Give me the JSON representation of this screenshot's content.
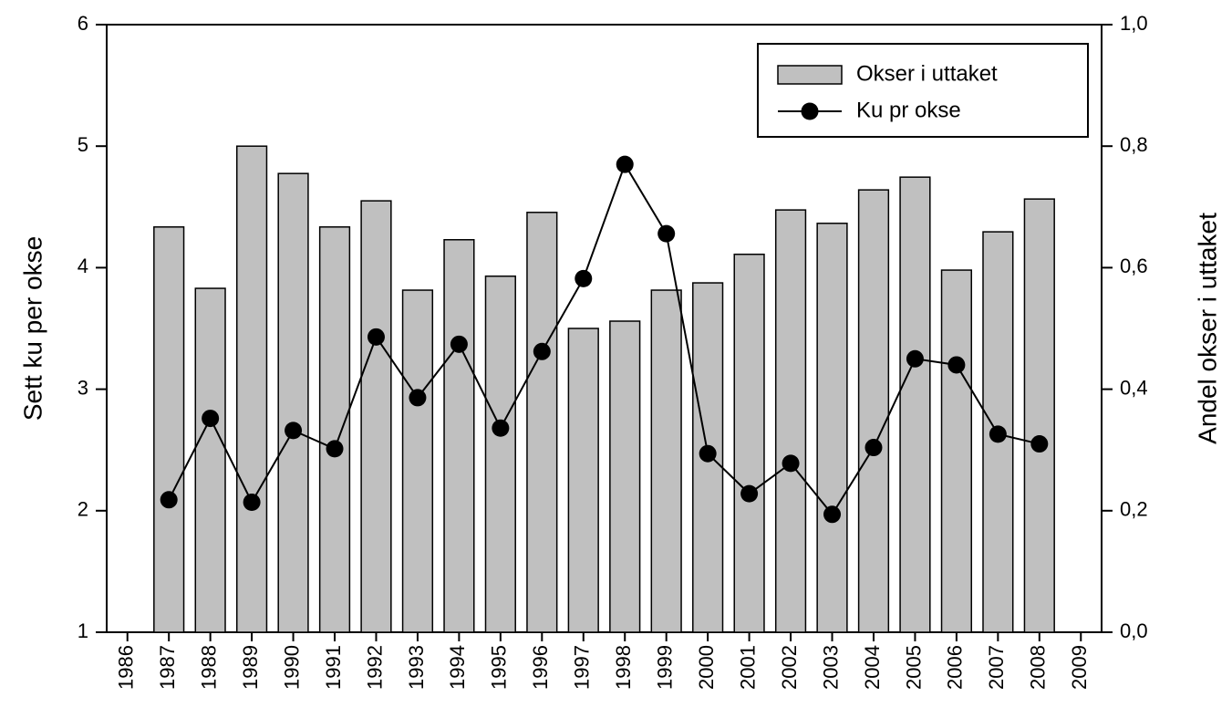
{
  "chart_data": {
    "type": "bar",
    "categories": [
      "1986",
      "1987",
      "1988",
      "1989",
      "1990",
      "1991",
      "1992",
      "1993",
      "1994",
      "1995",
      "1996",
      "1997",
      "1998",
      "1999",
      "2000",
      "2001",
      "2002",
      "2003",
      "2004",
      "2005",
      "2006",
      "2007",
      "2008",
      "2009"
    ],
    "series": [
      {
        "name": "Okser i uttaket",
        "type": "bar",
        "axis": "y2",
        "color": "#c0c0c0",
        "values": [
          null,
          0.667,
          0.566,
          0.8,
          0.755,
          0.667,
          0.71,
          0.563,
          0.646,
          0.586,
          0.691,
          0.5,
          0.512,
          0.563,
          0.575,
          0.622,
          0.695,
          0.673,
          0.728,
          0.749,
          0.596,
          0.659,
          0.713,
          null
        ]
      },
      {
        "name": "Ku pr okse",
        "type": "line",
        "axis": "y",
        "color": "#000000",
        "values": [
          null,
          2.09,
          2.76,
          2.07,
          2.66,
          2.51,
          3.43,
          2.93,
          3.37,
          2.68,
          3.31,
          3.91,
          4.85,
          4.28,
          2.47,
          2.14,
          2.39,
          1.97,
          2.52,
          3.25,
          3.2,
          2.63,
          2.55,
          null
        ]
      }
    ],
    "ylabel": "Sett ku per okse",
    "y2label": "Andel okser i uttaket",
    "ylim": [
      1,
      6
    ],
    "yticks": [
      1,
      2,
      3,
      4,
      5,
      6
    ],
    "y2lim": [
      0,
      1
    ],
    "y2ticks": [
      {
        "value": 0,
        "label": "0,0"
      },
      {
        "value": 0.2,
        "label": "0,2"
      },
      {
        "value": 0.4,
        "label": "0,4"
      },
      {
        "value": 0.6,
        "label": "0,6"
      },
      {
        "value": 0.8,
        "label": "0,8"
      },
      {
        "value": 1,
        "label": "1,0"
      }
    ],
    "legend": "upper right",
    "grid": false
  }
}
